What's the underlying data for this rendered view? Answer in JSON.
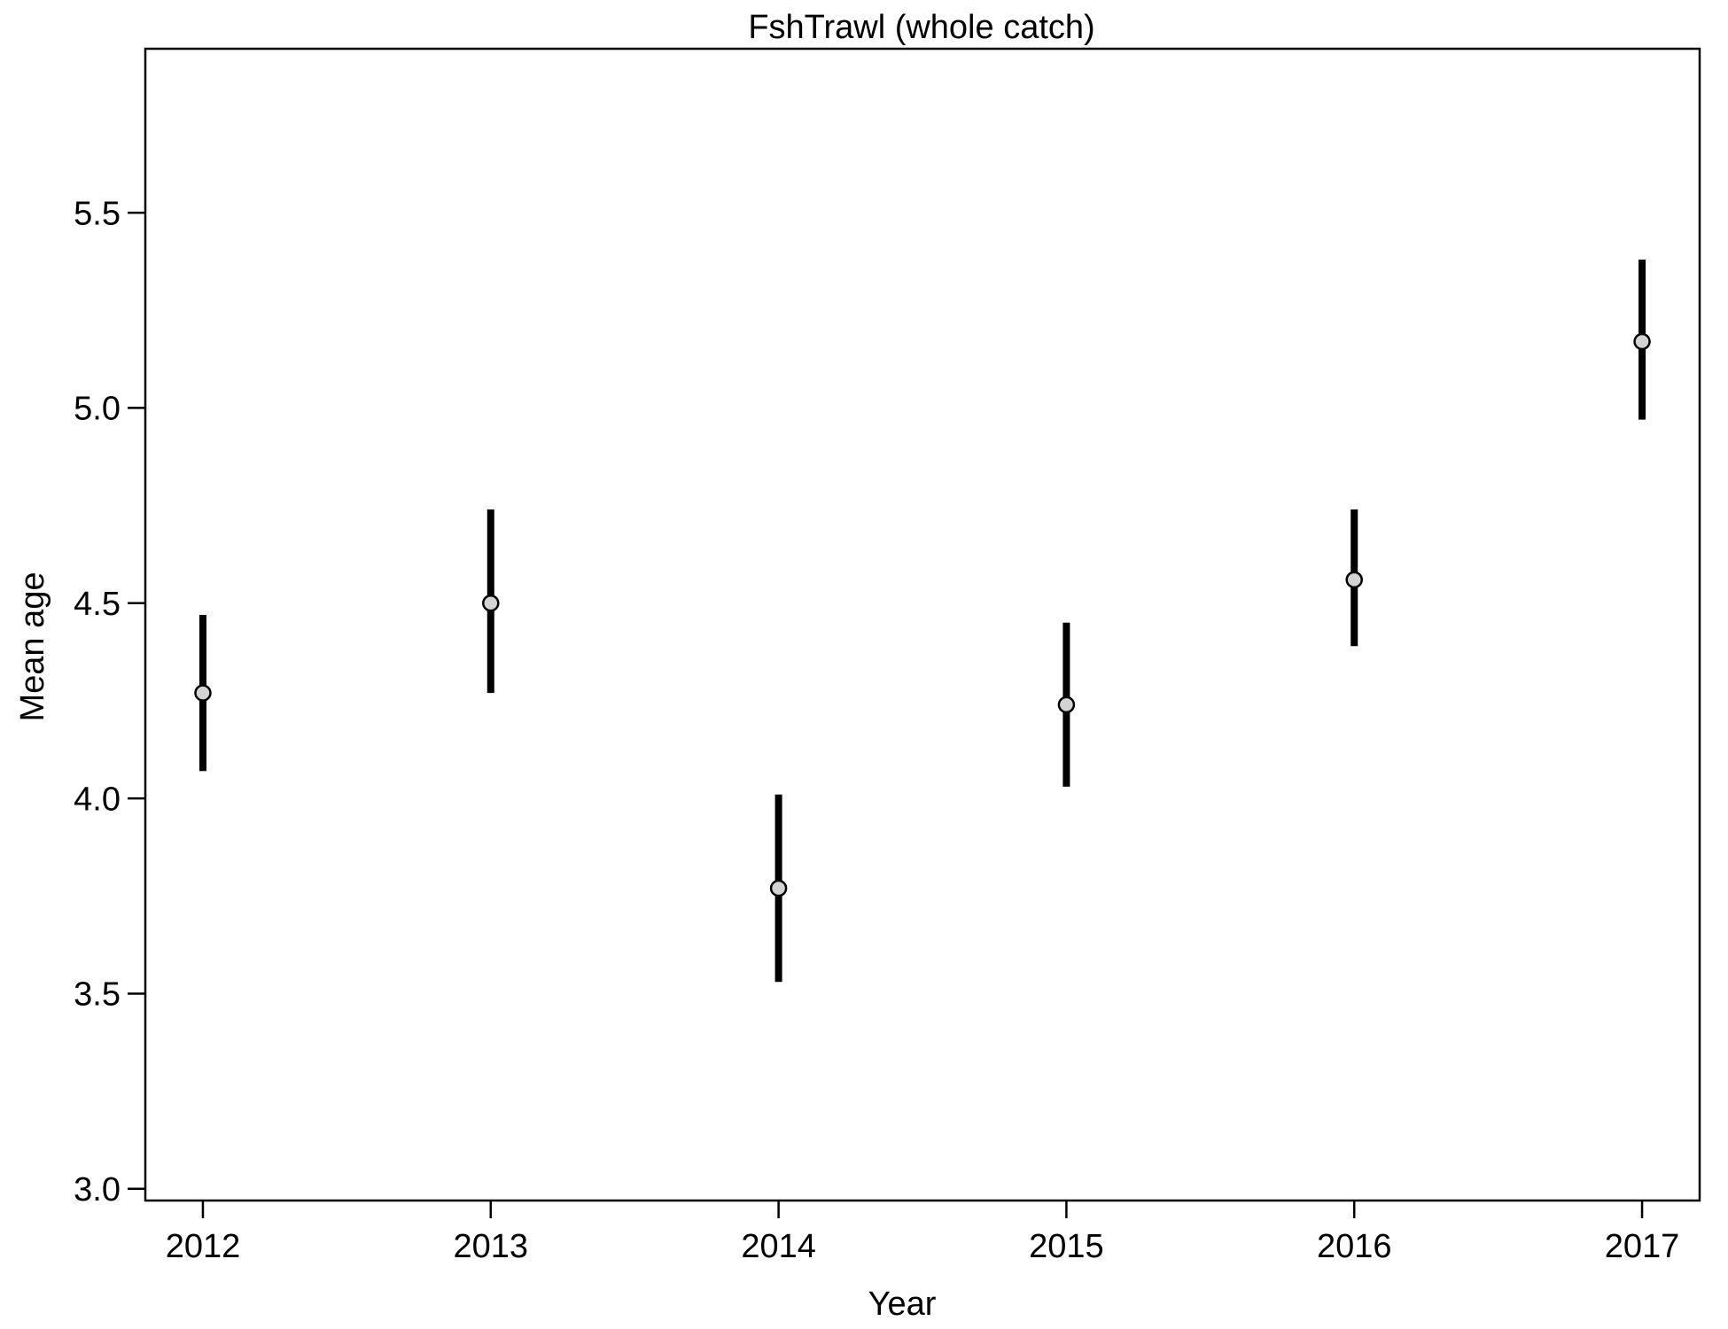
{
  "chart_data": {
    "type": "scatter",
    "title": "FshTrawl (whole catch)",
    "xlabel": "Year",
    "ylabel": "Mean age",
    "xlim": [
      2011.8,
      2017.2
    ],
    "ylim": [
      2.97,
      5.92
    ],
    "xticks": [
      "2012",
      "2013",
      "2014",
      "2015",
      "2016",
      "2017"
    ],
    "yticks": [
      "3.0",
      "3.5",
      "4.0",
      "4.5",
      "5.0",
      "5.5"
    ],
    "grid": false,
    "series": [
      {
        "points": [
          {
            "x": 2012,
            "y": 4.27,
            "lower": 4.07,
            "upper": 4.47
          },
          {
            "x": 2013,
            "y": 4.5,
            "lower": 4.27,
            "upper": 4.74
          },
          {
            "x": 2014,
            "y": 3.77,
            "lower": 3.53,
            "upper": 4.01
          },
          {
            "x": 2015,
            "y": 4.24,
            "lower": 4.03,
            "upper": 4.45
          },
          {
            "x": 2016,
            "y": 4.56,
            "lower": 4.39,
            "upper": 4.74
          },
          {
            "x": 2017,
            "y": 5.17,
            "lower": 4.97,
            "upper": 5.38
          }
        ],
        "marker_fill": "#d3d3d3",
        "marker_stroke": "#000000",
        "errorbar_color": "#000000"
      }
    ]
  }
}
